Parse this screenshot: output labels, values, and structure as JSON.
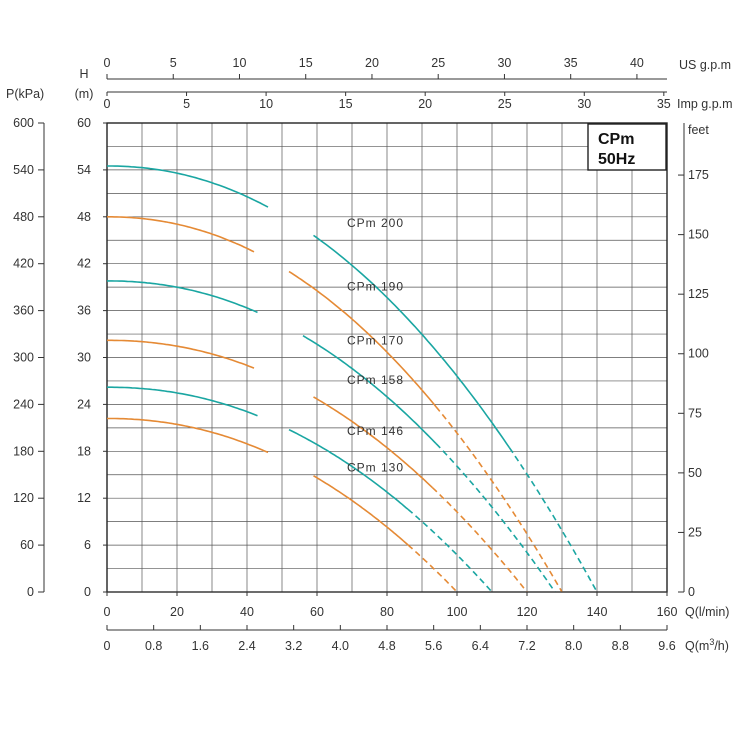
{
  "chart_data": {
    "type": "line",
    "title": "CPm\n50Hz",
    "badge_lines": [
      "CPm",
      "50Hz"
    ],
    "colors": {
      "cyan": "#1aa6a2",
      "orange": "#e58a35"
    },
    "axes": {
      "bottom_lmin": {
        "label": "Q(l/min)",
        "ticks": [
          "0",
          "20",
          "40",
          "60",
          "80",
          "100",
          "120",
          "140",
          "160"
        ],
        "range": [
          0,
          160
        ]
      },
      "bottom_m3h": {
        "label_main": "Q(m",
        "label_sup": "3",
        "label_end": "/h)",
        "ticks": [
          "0",
          "0.8",
          "1.6",
          "2.4",
          "3.2",
          "4.0",
          "4.8",
          "5.6",
          "6.4",
          "7.2",
          "8.0",
          "8.8",
          "9.6"
        ],
        "range": [
          0,
          9.6
        ]
      },
      "top_usgpm": {
        "label": "US  g.p.m",
        "ticks": [
          "0",
          "5",
          "10",
          "15",
          "20",
          "25",
          "30",
          "35",
          "40"
        ],
        "range": [
          0,
          42.27
        ]
      },
      "top_impgpm": {
        "label": "Imp g.p.m",
        "ticks": [
          "0",
          "5",
          "10",
          "15",
          "20",
          "25",
          "30",
          "35"
        ],
        "range": [
          0,
          35.2
        ]
      },
      "left_h": {
        "label_top": "H",
        "label_unit": "(m)",
        "ticks": [
          "0",
          "6",
          "12",
          "18",
          "24",
          "30",
          "36",
          "42",
          "48",
          "54",
          "60"
        ],
        "range": [
          0,
          60
        ]
      },
      "left_kpa": {
        "label": "P(kPa)",
        "ticks": [
          "0",
          "60",
          "120",
          "180",
          "240",
          "300",
          "360",
          "420",
          "480",
          "540",
          "600"
        ],
        "range": [
          0,
          600
        ]
      },
      "right_feet": {
        "label": "feet",
        "ticks": [
          "0",
          "25",
          "50",
          "75",
          "100",
          "125",
          "150",
          "175"
        ],
        "range": [
          0,
          196.85
        ]
      }
    },
    "series": [
      {
        "name": "CPm 200",
        "color": "cyan",
        "shutoff_head": 54.5,
        "max_flow": 140,
        "solid_until": 115,
        "label_gap": [
          46,
          59
        ],
        "label_pos": [
          80,
          47.2
        ]
      },
      {
        "name": "CPm 190",
        "color": "orange",
        "shutoff_head": 48,
        "max_flow": 130,
        "solid_until": 94,
        "label_gap": [
          42,
          52
        ],
        "label_pos": [
          80,
          39.1
        ]
      },
      {
        "name": "CPm 170",
        "color": "cyan",
        "shutoff_head": 39.8,
        "max_flow": 128,
        "solid_until": 94,
        "label_gap": [
          43,
          56
        ],
        "label_pos": [
          80,
          32.2
        ]
      },
      {
        "name": "CPm 158",
        "color": "orange",
        "shutoff_head": 32.2,
        "max_flow": 120,
        "solid_until": 93,
        "label_gap": [
          42,
          59
        ],
        "label_pos": [
          80,
          27.1
        ]
      },
      {
        "name": "CPm 146",
        "color": "cyan",
        "shutoff_head": 26.2,
        "max_flow": 110,
        "solid_until": 86,
        "label_gap": [
          43,
          52
        ],
        "label_pos": [
          80,
          20.6
        ]
      },
      {
        "name": "CPm 130",
        "color": "orange",
        "shutoff_head": 22.2,
        "max_flow": 100,
        "solid_until": 86,
        "label_gap": [
          46,
          59
        ],
        "label_pos": [
          80,
          15.9
        ]
      }
    ],
    "grid": true
  }
}
